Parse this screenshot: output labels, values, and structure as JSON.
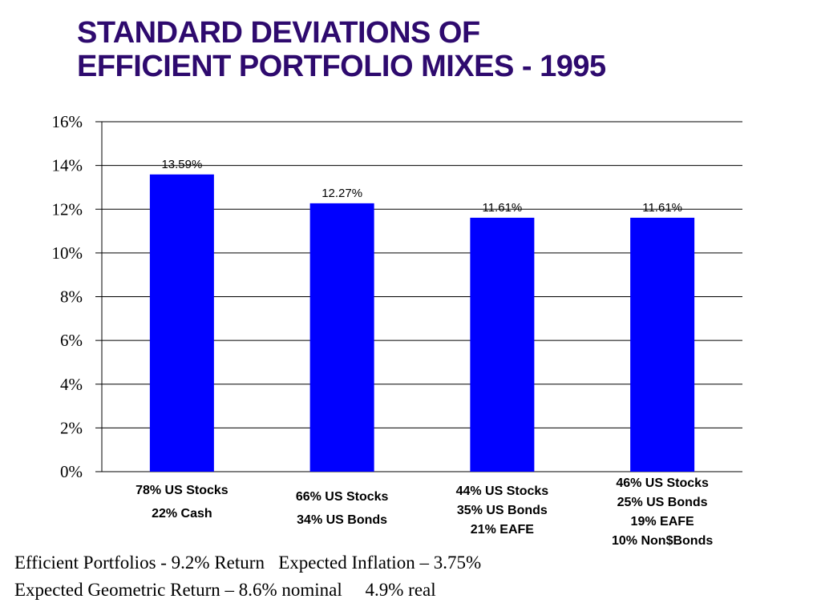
{
  "title_lines": [
    "STANDARD DEVIATIONS OF",
    "EFFICIENT PORTFOLIO MIXES - 1995"
  ],
  "colors": {
    "title": "#2e0a6e",
    "bar": "#0000ff",
    "grid": "#000000"
  },
  "chart_data": {
    "type": "bar",
    "title": "STANDARD DEVIATIONS OF EFFICIENT PORTFOLIO MIXES - 1995",
    "categories": [
      [
        "78% US Stocks",
        "22% Cash"
      ],
      [
        "66% US Stocks",
        "34% US Bonds"
      ],
      [
        "44%  US Stocks",
        "35% US Bonds",
        "21% EAFE"
      ],
      [
        "46% US Stocks",
        "25% US Bonds",
        "19% EAFE",
        "10% Non$Bonds"
      ]
    ],
    "values": [
      13.59,
      12.27,
      11.61,
      11.61
    ],
    "data_labels": [
      "13.59%",
      "12.27%",
      "11.61%",
      "11.61%"
    ],
    "y_ticks": [
      "0%",
      "2%",
      "4%",
      "6%",
      "8%",
      "10%",
      "12%",
      "14%",
      "16%"
    ],
    "ylim": [
      0,
      16
    ],
    "y_tick_step": 2,
    "grid": true,
    "xlabel": "",
    "ylabel": ""
  },
  "footnotes": [
    "Efficient Portfolios - 9.2% Return   Expected Inflation – 3.75%",
    "Expected Geometric Return – 8.6% nominal     4.9% real"
  ]
}
